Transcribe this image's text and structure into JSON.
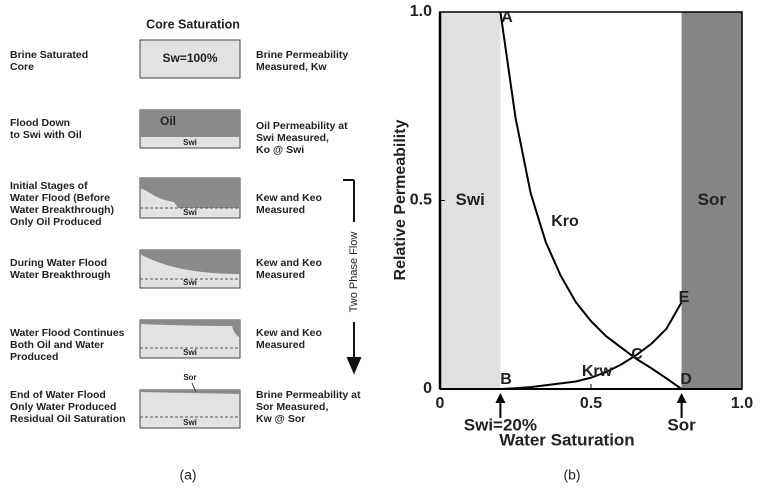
{
  "diagram": {
    "header": "Core Saturation",
    "rows": [
      {
        "left": [
          "Brine Saturated",
          "Core"
        ],
        "box": [
          "Sw=100%"
        ],
        "right": [
          "Brine Permeability",
          "Measured, Kw"
        ]
      },
      {
        "left": [
          "Flood Down",
          "to Swi with Oil"
        ],
        "box": [
          "Oil",
          "Swi"
        ],
        "right": [
          "Oil Permeability at",
          "Swi Measured,",
          "Ko @ Swi"
        ]
      },
      {
        "left": [
          "Initial Stages of",
          "Water Flood (Before",
          "Water Breakthrough)",
          "Only Oil Produced"
        ],
        "box": [
          "Swi"
        ],
        "right": [
          "Kew and Keo",
          "Measured"
        ]
      },
      {
        "left": [
          "During Water Flood",
          "Water Breakthrough"
        ],
        "box": [
          "Swi"
        ],
        "right": [
          "Kew and Keo",
          "Measured"
        ]
      },
      {
        "left": [
          "Water Flood Continues",
          "Both Oil and Water",
          "Produced"
        ],
        "box": [
          "Swi"
        ],
        "right": [
          "Kew and Keo",
          "Measured"
        ]
      },
      {
        "left": [
          "End of Water Flood",
          "Only Water Produced",
          "Residual Oil Saturation"
        ],
        "box": [
          "Sor",
          "Swi"
        ],
        "right": [
          "Brine Permeability at",
          "Sor Measured,",
          "Kw @ Sor"
        ]
      }
    ],
    "flow_label": "Two Phase Flow",
    "captions": [
      "(a)",
      "(b)"
    ]
  },
  "chart_data": {
    "type": "line",
    "x_label": "Water Saturation",
    "y_label": "Relative Permeability",
    "xlim": [
      0,
      1
    ],
    "ylim": [
      0,
      1
    ],
    "xticks": [
      0,
      0.5,
      {
        "value": 1,
        "label": "1.0"
      }
    ],
    "yticks": [
      0,
      0.5,
      {
        "value": 1,
        "label": "1.0"
      }
    ],
    "regions": [
      {
        "name": "Swi",
        "range": [
          0,
          0.2
        ],
        "color": "#e0e0e2"
      },
      {
        "name": "Sor",
        "range": [
          0.8,
          1
        ],
        "color": "#858585"
      }
    ],
    "series": [
      {
        "name": "Kro",
        "color": "#000000",
        "x": [
          0.2,
          0.25,
          0.3,
          0.35,
          0.4,
          0.45,
          0.5,
          0.55,
          0.6,
          0.65,
          0.7,
          0.75,
          0.8
        ],
        "values": [
          1.0,
          0.72,
          0.52,
          0.39,
          0.3,
          0.23,
          0.18,
          0.14,
          0.11,
          0.08,
          0.055,
          0.028,
          0
        ]
      },
      {
        "name": "Krw",
        "color": "#000000",
        "x": [
          0.2,
          0.25,
          0.3,
          0.35,
          0.4,
          0.45,
          0.5,
          0.55,
          0.6,
          0.65,
          0.7,
          0.75,
          0.8
        ],
        "values": [
          0,
          0.002,
          0.005,
          0.01,
          0.015,
          0.02,
          0.03,
          0.045,
          0.065,
          0.09,
          0.12,
          0.16,
          0.23
        ]
      }
    ],
    "point_labels": [
      "A",
      "B",
      "C",
      "D",
      "E"
    ],
    "annotations": [
      "Swi=20%",
      "Sor"
    ]
  }
}
